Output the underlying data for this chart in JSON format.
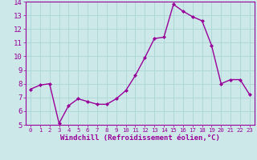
{
  "x": [
    0,
    1,
    2,
    3,
    4,
    5,
    6,
    7,
    8,
    9,
    10,
    11,
    12,
    13,
    14,
    15,
    16,
    17,
    18,
    19,
    20,
    21,
    22,
    23
  ],
  "y": [
    7.6,
    7.9,
    8.0,
    5.1,
    6.4,
    6.9,
    6.7,
    6.5,
    6.5,
    6.9,
    7.5,
    8.6,
    9.9,
    11.3,
    11.4,
    13.8,
    13.3,
    12.9,
    12.6,
    10.8,
    8.0,
    8.3,
    8.3,
    7.2
  ],
  "line_color": "#990099",
  "marker": "D",
  "marker_size": 2.0,
  "linewidth": 1.0,
  "xlabel": "Windchill (Refroidissement éolien,°C)",
  "xlabel_fontsize": 6.5,
  "ylim": [
    5,
    14
  ],
  "xlim": [
    -0.5,
    23.5
  ],
  "yticks": [
    5,
    6,
    7,
    8,
    9,
    10,
    11,
    12,
    13,
    14
  ],
  "xticks": [
    0,
    1,
    2,
    3,
    4,
    5,
    6,
    7,
    8,
    9,
    10,
    11,
    12,
    13,
    14,
    15,
    16,
    17,
    18,
    19,
    20,
    21,
    22,
    23
  ],
  "grid_color": "#b0d8d8",
  "bg_color": "#cce8e8",
  "tick_color": "#990099",
  "spine_color": "#990099",
  "fig_bg": "#cce8e8",
  "ytick_fontsize": 6.5,
  "xtick_fontsize": 5.2
}
